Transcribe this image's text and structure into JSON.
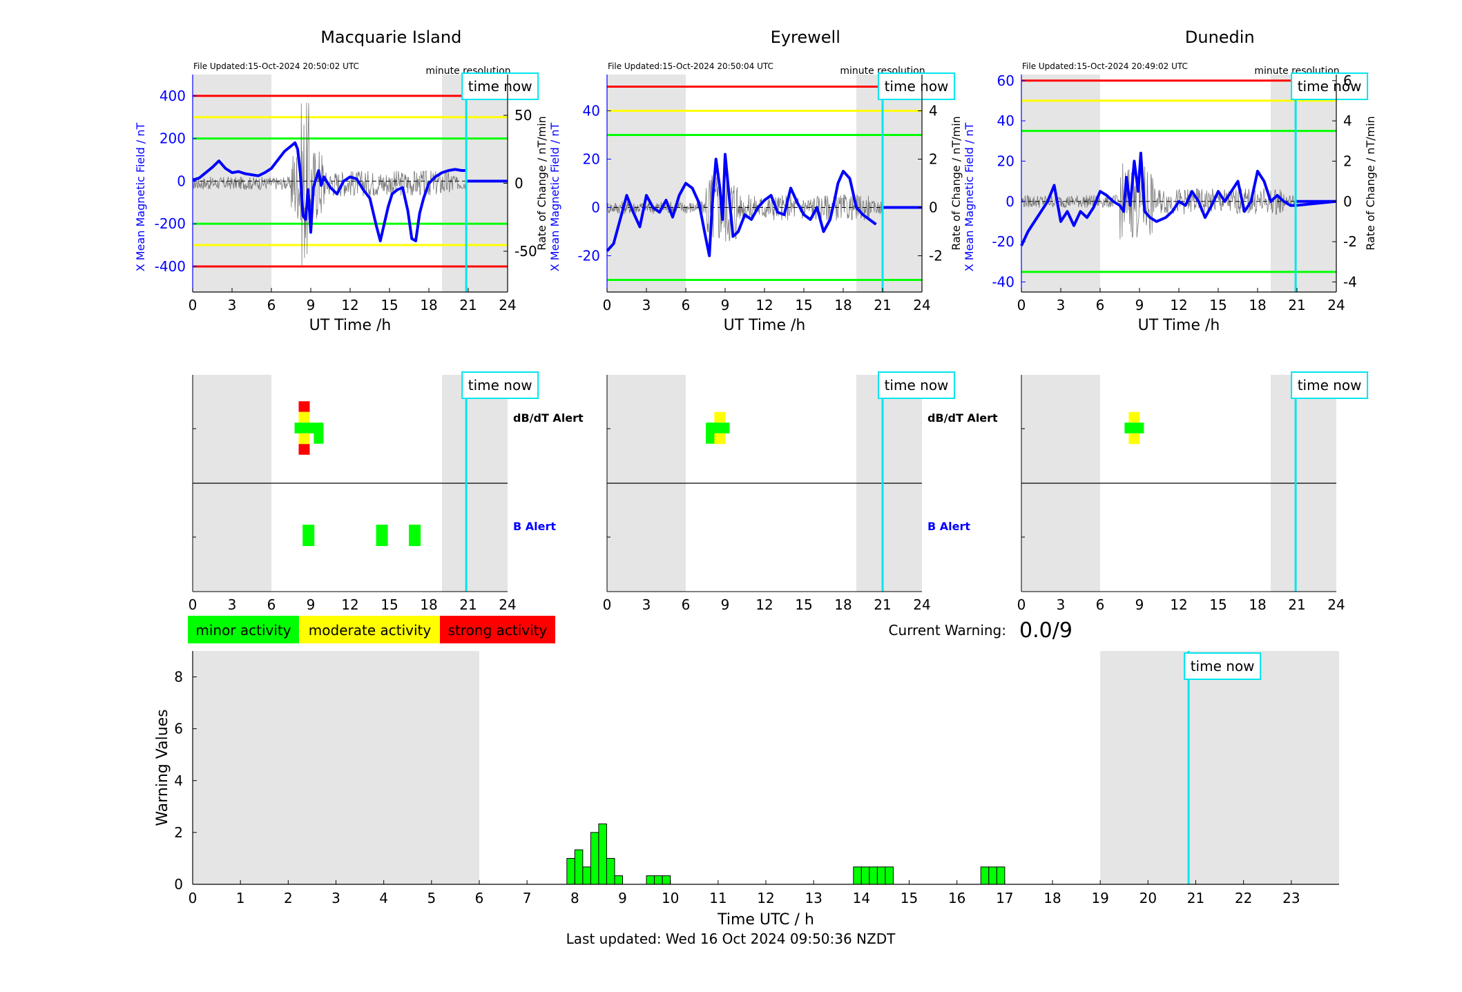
{
  "stations": [
    {
      "title": "Macquarie Island",
      "file_updated": "File Updated:15-Oct-2024 20:50:02 UTC",
      "resolution": "minute resolution",
      "time_now_label": "time now",
      "left_axis_label": "X Mean Magnetic Field / nT",
      "right_axis_label": "Rate of Change / nT/min",
      "x_axis_label": "UT Time /h",
      "x_ticks": [
        "0",
        "3",
        "6",
        "9",
        "12",
        "15",
        "18",
        "21",
        "24"
      ],
      "left_ticks": [
        "400",
        "200",
        "0",
        "-200",
        "-400"
      ],
      "right_ticks": [
        "50",
        "0",
        "-50"
      ],
      "alert_labels": {
        "dbdt": "dB/dT Alert",
        "b": "B Alert"
      }
    },
    {
      "title": "Eyrewell",
      "file_updated": "File Updated:15-Oct-2024 20:50:04 UTC",
      "resolution": "minute resolution",
      "time_now_label": "time now",
      "left_axis_label": "X Mean Magnetic Field / nT",
      "right_axis_label": "Rate of Change / nT/min",
      "x_axis_label": "UT Time /h",
      "x_ticks": [
        "0",
        "3",
        "6",
        "9",
        "12",
        "15",
        "18",
        "21",
        "24"
      ],
      "left_ticks": [
        "40",
        "20",
        "0",
        "-20"
      ],
      "right_ticks": [
        "4",
        "2",
        "0",
        "-2"
      ],
      "alert_labels": {
        "dbdt": "dB/dT Alert",
        "b": "B Alert"
      }
    },
    {
      "title": "Dunedin",
      "file_updated": "File Updated:15-Oct-2024 20:49:02 UTC",
      "resolution": "minute resolution",
      "time_now_label": "time now",
      "left_axis_label": "X Mean Magnetic Field / nT",
      "right_axis_label": "Rate of Change / nT/min",
      "x_axis_label": "UT Time /h",
      "x_ticks": [
        "0",
        "3",
        "6",
        "9",
        "12",
        "15",
        "18",
        "21",
        "24"
      ],
      "left_ticks": [
        "60",
        "40",
        "20",
        "0",
        "-20",
        "-40"
      ],
      "right_ticks": [
        "6",
        "4",
        "2",
        "0",
        "-2",
        "-4"
      ],
      "alert_labels": {
        "dbdt": "",
        "b": ""
      }
    }
  ],
  "legend": {
    "minor": "minor activity",
    "moderate": "moderate activity",
    "strong": "strong activity"
  },
  "current_warning": {
    "label": "Current Warning:",
    "value": "0.0/9"
  },
  "colors": {
    "minor": "#00ff00",
    "moderate": "#ffff00",
    "strong": "#ff0000",
    "field_line": "#0000ff",
    "time_now": "#00e5ee",
    "night_shade": "#e5e5e5"
  },
  "chart_data": [
    {
      "type": "line",
      "station": "Macquarie Island",
      "series": [],
      "x_range_h": [
        0,
        24
      ],
      "ylim_left_nT": [
        -520,
        500
      ],
      "ylim_right_nT_per_min": [
        -80,
        80
      ],
      "thresholds_nT": {
        "red": [
          400,
          -400
        ],
        "yellow": [
          300,
          -300
        ],
        "green": [
          200,
          -200
        ]
      },
      "time_now_h": 20.85,
      "shaded_h": [
        [
          0,
          6
        ],
        [
          19,
          24
        ]
      ],
      "x_mean_field": {
        "x": [
          0,
          0.5,
          1,
          1.5,
          2,
          2.5,
          3,
          3.5,
          4,
          4.5,
          5,
          5.5,
          6,
          6.5,
          7,
          7.5,
          7.8,
          8,
          8.2,
          8.4,
          8.6,
          8.8,
          9,
          9.2,
          9.4,
          9.6,
          9.8,
          10,
          10.5,
          11,
          11.5,
          12,
          12.5,
          13,
          13.5,
          14,
          14.3,
          14.6,
          14.9,
          15.2,
          15.6,
          16,
          16.4,
          16.7,
          17,
          17.3,
          17.6,
          18,
          18.5,
          19,
          19.5,
          20,
          20.5,
          20.9
        ],
        "y": [
          5,
          15,
          40,
          65,
          95,
          60,
          40,
          45,
          35,
          30,
          25,
          40,
          60,
          100,
          140,
          165,
          180,
          150,
          40,
          -160,
          -180,
          -40,
          -240,
          -30,
          10,
          50,
          -20,
          20,
          -30,
          -60,
          0,
          20,
          10,
          -40,
          -80,
          -210,
          -280,
          -200,
          -120,
          -60,
          -40,
          -30,
          -140,
          -270,
          -280,
          -150,
          -80,
          -10,
          20,
          40,
          50,
          55,
          50,
          50
        ]
      },
      "rate_of_change_nT_per_min_range": [
        -80,
        80
      ],
      "dbdt_alert": [
        {
          "h": 8.5,
          "colors": [
            "red",
            "yellow",
            "green",
            "yellow",
            "red"
          ]
        },
        {
          "h": 9.6,
          "colors": [
            "green"
          ]
        }
      ],
      "b_alert": [
        {
          "h": 8.8
        },
        {
          "h": 14.4
        },
        {
          "h": 16.9
        }
      ]
    },
    {
      "type": "line",
      "station": "Eyrewell",
      "series": [],
      "x_range_h": [
        0,
        24
      ],
      "ylim_left_nT": [
        -35,
        55
      ],
      "ylim_right_nT_per_min": [
        -3.5,
        5.5
      ],
      "thresholds_nT": {
        "red": [
          50
        ],
        "yellow": [
          40
        ],
        "green": [
          30,
          -30
        ]
      },
      "time_now_h": 21,
      "shaded_h": [
        [
          0,
          6
        ],
        [
          19,
          24
        ]
      ],
      "x_mean_field": {
        "x": [
          0,
          0.5,
          1,
          1.5,
          2,
          2.5,
          3,
          3.5,
          4,
          4.5,
          5,
          5.5,
          6,
          6.5,
          7,
          7.5,
          7.8,
          8,
          8.3,
          8.6,
          8.8,
          9,
          9.3,
          9.6,
          10,
          10.5,
          11,
          11.5,
          12,
          12.5,
          13,
          13.5,
          14,
          14.5,
          15,
          15.5,
          16,
          16.5,
          17,
          17.3,
          17.6,
          18,
          18.5,
          19,
          19.5,
          20,
          20.5
        ],
        "y": [
          -18,
          -15,
          -5,
          5,
          -2,
          -8,
          5,
          0,
          -2,
          3,
          -4,
          5,
          10,
          8,
          2,
          -12,
          -20,
          0,
          20,
          8,
          -5,
          22,
          5,
          -12,
          -10,
          -3,
          -5,
          0,
          3,
          5,
          -2,
          -3,
          8,
          2,
          -3,
          -5,
          0,
          -10,
          -5,
          2,
          10,
          15,
          12,
          0,
          -3,
          -5,
          -7
        ]
      },
      "dbdt_alert": [
        {
          "h": 7.9,
          "colors": [
            "green"
          ]
        },
        {
          "h": 8.6,
          "colors": [
            "yellow",
            "green",
            "yellow"
          ]
        }
      ],
      "b_alert": []
    },
    {
      "type": "line",
      "station": "Dunedin",
      "series": [],
      "x_range_h": [
        0,
        24
      ],
      "ylim_left_nT": [
        -45,
        63
      ],
      "ylim_right_nT_per_min": [
        -4.5,
        6.3
      ],
      "thresholds_nT": {
        "red": [
          60
        ],
        "yellow": [
          50
        ],
        "green": [
          35,
          -35
        ]
      },
      "time_now_h": 20.9,
      "shaded_h": [
        [
          0,
          6
        ],
        [
          19,
          24
        ]
      ],
      "x_mean_field": {
        "x": [
          0,
          0.5,
          1,
          1.5,
          2,
          2.5,
          3,
          3.5,
          4,
          4.5,
          5,
          5.5,
          6,
          6.5,
          7,
          7.5,
          7.8,
          8,
          8.3,
          8.6,
          8.9,
          9.1,
          9.4,
          9.8,
          10.3,
          11,
          11.5,
          12,
          12.5,
          13,
          13.5,
          14,
          14.5,
          15,
          15.5,
          16,
          16.5,
          17,
          17.5,
          18,
          18.5,
          19,
          19.5,
          20,
          20.5,
          20.9,
          24
        ],
        "y": [
          -22,
          -15,
          -10,
          -5,
          0,
          8,
          -10,
          -5,
          -12,
          -5,
          -8,
          -3,
          5,
          3,
          0,
          -2,
          -5,
          12,
          -2,
          20,
          5,
          24,
          -5,
          -8,
          -10,
          -8,
          -5,
          0,
          -2,
          5,
          0,
          -8,
          -2,
          5,
          0,
          5,
          10,
          -5,
          0,
          15,
          10,
          0,
          3,
          0,
          -2,
          -2,
          0
        ]
      },
      "dbdt_alert": [
        {
          "h": 8.6,
          "colors": [
            "yellow",
            "green",
            "yellow"
          ]
        }
      ],
      "b_alert": []
    },
    {
      "type": "bar",
      "title": "",
      "xlabel": "Time UTC / h",
      "ylabel": "Warning Values",
      "xlim": [
        0,
        24
      ],
      "ylim": [
        0,
        9
      ],
      "x_ticks": [
        "0",
        "1",
        "2",
        "3",
        "4",
        "5",
        "6",
        "7",
        "8",
        "9",
        "10",
        "11",
        "12",
        "13",
        "14",
        "15",
        "16",
        "17",
        "18",
        "19",
        "20",
        "21",
        "22",
        "23"
      ],
      "y_ticks": [
        "0",
        "2",
        "4",
        "6",
        "8"
      ],
      "time_now_h": 20.85,
      "time_now_label": "time now",
      "shaded_h": [
        [
          0,
          6
        ],
        [
          19,
          24
        ]
      ],
      "bar_width_h": 0.1667,
      "x": [
        7.917,
        8.083,
        8.25,
        8.417,
        8.583,
        8.75,
        8.917,
        9.583,
        9.75,
        9.917,
        13.917,
        14.083,
        14.25,
        14.417,
        14.583,
        16.583,
        16.75,
        16.917
      ],
      "values": [
        1.0,
        1.33,
        0.67,
        2.0,
        2.33,
        1.0,
        0.33,
        0.33,
        0.33,
        0.33,
        0.67,
        0.67,
        0.67,
        0.67,
        0.67,
        0.67,
        0.67,
        0.67
      ]
    }
  ],
  "footer": "Last updated: Wed 16 Oct 2024 09:50:36 NZDT"
}
